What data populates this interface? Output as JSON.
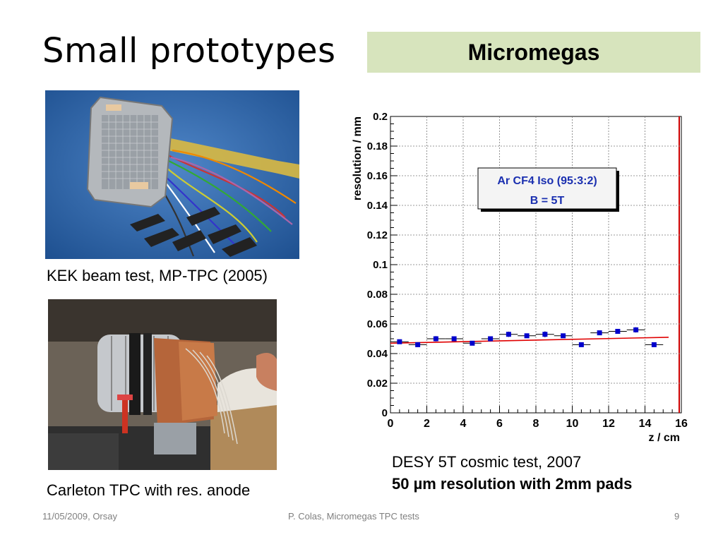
{
  "slide": {
    "title": "Small prototypes",
    "banner": "Micromegas",
    "caption_kek": "KEK beam test, MP-TPC (2005)",
    "caption_carleton": "Carleton TPC with res. anode",
    "caption_desy_1": "DESY 5T cosmic test, 2007",
    "caption_desy_2": "50 µm resolution with 2mm pads",
    "footer_date": "11/05/2009, Orsay",
    "footer_author": "P. Colas, Micromegas TPC tests",
    "page_number": "9"
  },
  "colors": {
    "banner_bg": "#d7e4bd",
    "marker": "#0000cc",
    "fit_line": "#e00000",
    "frame_right": "#cc0000",
    "legend_text": "#1a2fb0"
  },
  "chart_data": {
    "type": "scatter",
    "xlabel": "z / cm",
    "ylabel": "resolution / mm",
    "xlim": [
      0,
      16
    ],
    "ylim": [
      0,
      0.2
    ],
    "xticks": [
      "0",
      "2",
      "4",
      "6",
      "8",
      "10",
      "12",
      "14",
      "16"
    ],
    "yticks": [
      "0",
      "0.02",
      "0.04",
      "0.06",
      "0.08",
      "0.1",
      "0.12",
      "0.14",
      "0.16",
      "0.18",
      "0.2"
    ],
    "grid": true,
    "legend_lines": [
      "Ar CF4 Iso (95:3:2)",
      "B = 5T"
    ],
    "legend_position": "top-right",
    "series": [
      {
        "x": [
          0.5,
          1.5,
          2.5,
          3.5,
          4.5,
          5.5,
          6.5,
          7.5,
          8.5,
          9.5,
          10.5,
          11.5,
          12.5,
          13.5,
          14.5
        ],
        "y": [
          0.048,
          0.046,
          0.05,
          0.05,
          0.047,
          0.05,
          0.053,
          0.052,
          0.053,
          0.052,
          0.046,
          0.054,
          0.055,
          0.056,
          0.046
        ],
        "x_err": 0.5,
        "y_err": [
          0.0015,
          0.0015,
          0.0018,
          0.0015,
          0.0012,
          0.0015,
          0.0018,
          0.0015,
          0.002,
          0.0015,
          0.0012,
          0.0015,
          0.0015,
          0.0018,
          0.0012
        ]
      }
    ],
    "fit_line": {
      "x": [
        0,
        15.3
      ],
      "y": [
        0.047,
        0.051
      ]
    }
  }
}
